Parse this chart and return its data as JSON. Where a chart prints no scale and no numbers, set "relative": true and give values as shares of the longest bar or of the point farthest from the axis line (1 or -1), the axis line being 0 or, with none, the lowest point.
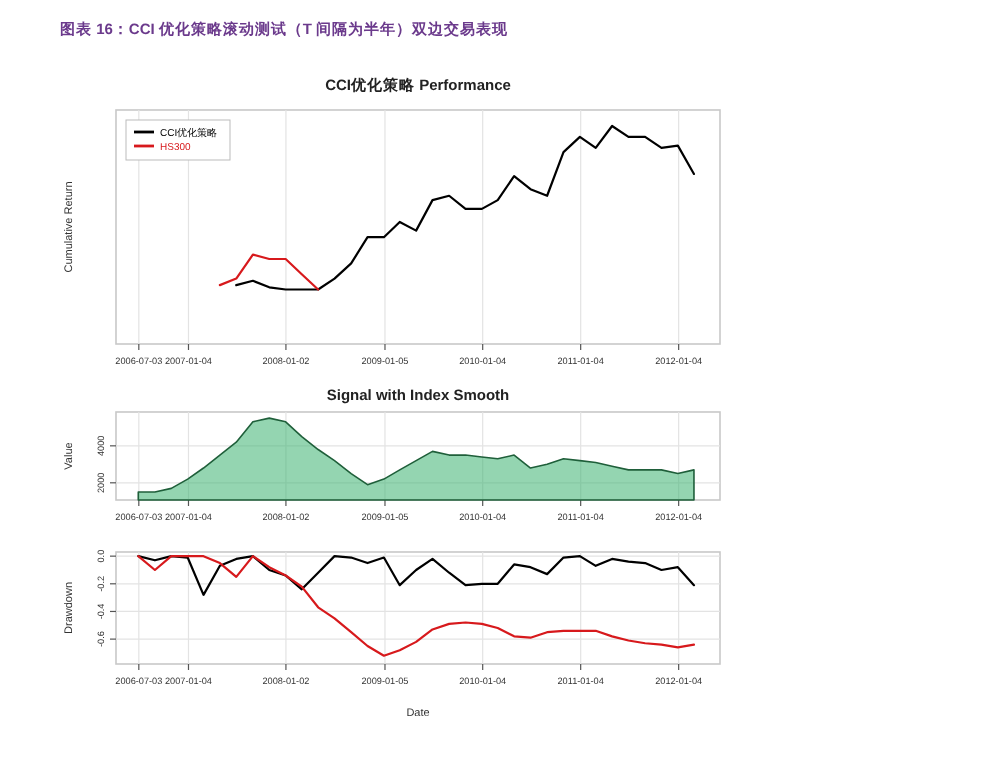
{
  "chart_data": [
    {
      "type": "line",
      "title": "CCI优化策略 Performance",
      "ylabel": "Cumulative Return",
      "relative": true,
      "grid": true,
      "legend": "top left",
      "annotations": [
        "图表 16：CCI 优化策略滚动测试（T 间隔为半年）双边交易表现"
      ],
      "xlim": [
        "2006-04-09",
        "2012-06-06"
      ],
      "xticks": [
        "2006-07-03",
        "2007-01-04",
        "2008-01-02",
        "2009-01-05",
        "2010-01-04",
        "2011-01-04",
        "2012-01-04"
      ],
      "series": [
        {
          "name": "CCI优化策略",
          "color": "#000000",
          "x": [
            "2007-07",
            "2007-09",
            "2007-11",
            "2008-01",
            "2008-03",
            "2008-05",
            "2008-07",
            "2008-09",
            "2008-11",
            "2009-01",
            "2009-03",
            "2009-05",
            "2009-07",
            "2009-09",
            "2009-11",
            "2010-01",
            "2010-03",
            "2010-05",
            "2010-07",
            "2010-09",
            "2010-11",
            "2011-01",
            "2011-03",
            "2011-05",
            "2011-07",
            "2011-09",
            "2011-11",
            "2012-01",
            "2012-03"
          ],
          "values": [
            0.27,
            0.29,
            0.26,
            0.25,
            0.25,
            0.25,
            0.3,
            0.37,
            0.49,
            0.49,
            0.56,
            0.52,
            0.66,
            0.68,
            0.62,
            0.62,
            0.66,
            0.77,
            0.71,
            0.68,
            0.88,
            0.95,
            0.9,
            1,
            0.95,
            0.95,
            0.9,
            0.91,
            0.78
          ]
        },
        {
          "name": "HS300",
          "color": "#d7191c",
          "x": [
            "2007-05",
            "2007-07",
            "2007-09",
            "2007-11",
            "2008-01",
            "2008-03",
            "2008-05"
          ],
          "values": [
            0.27,
            0.3,
            0.41,
            0.39,
            0.39,
            0.32,
            0.25
          ]
        }
      ]
    },
    {
      "type": "area",
      "title": "Signal with Index Smooth",
      "ylabel": "Value",
      "grid": true,
      "xlim": [
        "2006-04-09",
        "2012-06-06"
      ],
      "xticks": [
        "2006-07-03",
        "2007-01-04",
        "2008-01-02",
        "2009-01-05",
        "2010-01-04",
        "2011-01-04",
        "2012-01-04"
      ],
      "ylim": [
        1070,
        5830
      ],
      "yticks": [
        2000,
        4000
      ],
      "x": [
        "2006-07",
        "2006-09",
        "2006-11",
        "2007-01",
        "2007-03",
        "2007-05",
        "2007-07",
        "2007-09",
        "2007-11",
        "2008-01",
        "2008-03",
        "2008-05",
        "2008-07",
        "2008-09",
        "2008-11",
        "2009-01",
        "2009-03",
        "2009-05",
        "2009-07",
        "2009-09",
        "2009-11",
        "2010-01",
        "2010-03",
        "2010-05",
        "2010-07",
        "2010-09",
        "2010-11",
        "2011-01",
        "2011-03",
        "2011-05",
        "2011-07",
        "2011-09",
        "2011-11",
        "2012-01",
        "2012-03"
      ],
      "series": [
        {
          "color": "#3cb371",
          "values": [
            1500,
            1500,
            1700,
            2200,
            2800,
            3500,
            4200,
            5300,
            5500,
            5300,
            4500,
            3800,
            3200,
            2500,
            1900,
            2200,
            2700,
            3200,
            3700,
            3500,
            3500,
            3400,
            3300,
            3500,
            2800,
            3000,
            3300,
            3200,
            3100,
            2900,
            2700,
            2700,
            2700,
            2500,
            2700
          ]
        }
      ]
    },
    {
      "type": "line",
      "xlabel": "Date",
      "ylabel": "Drawdown",
      "grid": true,
      "xlim": [
        "2006-04-09",
        "2012-06-06"
      ],
      "xticks": [
        "2006-07-03",
        "2007-01-04",
        "2008-01-02",
        "2009-01-05",
        "2010-01-04",
        "2011-01-04",
        "2012-01-04"
      ],
      "ylim": [
        -0.78,
        0.03
      ],
      "yticks": [
        {
          "value": 0,
          "label": "0.0"
        },
        -0.2,
        -0.4,
        -0.6
      ],
      "x": [
        "2006-07",
        "2006-09",
        "2006-11",
        "2007-01",
        "2007-03",
        "2007-05",
        "2007-07",
        "2007-09",
        "2007-11",
        "2008-01",
        "2008-03",
        "2008-05",
        "2008-07",
        "2008-09",
        "2008-11",
        "2009-01",
        "2009-03",
        "2009-05",
        "2009-07",
        "2009-09",
        "2009-11",
        "2010-01",
        "2010-03",
        "2010-05",
        "2010-07",
        "2010-09",
        "2010-11",
        "2011-01",
        "2011-03",
        "2011-05",
        "2011-07",
        "2011-09",
        "2011-11",
        "2012-01",
        "2012-03"
      ],
      "series": [
        {
          "color": "#000000",
          "values": [
            0,
            -0.03,
            0,
            -0.01,
            -0.28,
            -0.07,
            -0.02,
            0,
            -0.1,
            -0.14,
            -0.24,
            -0.12,
            0,
            -0.01,
            -0.05,
            -0.01,
            -0.21,
            -0.1,
            -0.02,
            -0.12,
            -0.21,
            -0.2,
            -0.2,
            -0.06,
            -0.08,
            -0.13,
            -0.01,
            0,
            -0.07,
            -0.02,
            -0.04,
            -0.05,
            -0.1,
            -0.08,
            -0.21
          ]
        },
        {
          "color": "#d7191c",
          "values": [
            0,
            -0.1,
            0,
            0,
            0,
            -0.05,
            -0.15,
            0,
            -0.08,
            -0.14,
            -0.22,
            -0.37,
            -0.45,
            -0.55,
            -0.65,
            -0.72,
            -0.68,
            -0.62,
            -0.53,
            -0.49,
            -0.48,
            -0.49,
            -0.52,
            -0.58,
            -0.59,
            -0.55,
            -0.54,
            -0.54,
            -0.54,
            -0.58,
            -0.61,
            -0.63,
            -0.64,
            -0.66,
            -0.64
          ]
        }
      ]
    }
  ]
}
